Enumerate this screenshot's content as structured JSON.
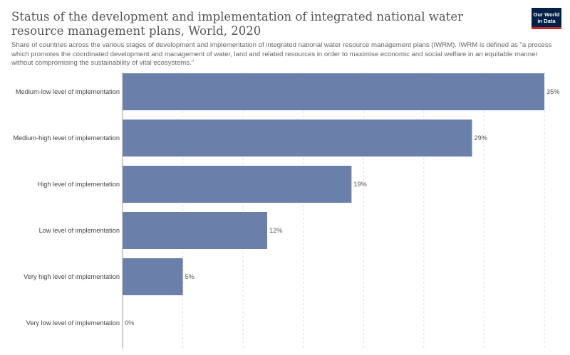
{
  "header": {
    "title": "Status of the development and implementation of integrated national water resource management plans, World, 2020",
    "subtitle": "Share of countries across the various stages of development and implementation of integrated national water resource management plans (IWRM). IWRM is defined as \"a process which promotes the coordinated development and management of water, land and related resources in order to maximise economic and social welfare in an equitable manner without compromising the sustainability of vital ecosystems.\"",
    "logo_line1": "Our World",
    "logo_line2": "in Data"
  },
  "colors": {
    "bar": "#6a7fa9",
    "grid": "#dddddd",
    "axis": "#999999",
    "logo_bg": "#002147",
    "logo_accent": "#ce261e"
  },
  "chart_data": {
    "type": "bar",
    "orientation": "horizontal",
    "categories": [
      "Medium-low level of implementation",
      "Medium-high level of implementation",
      "High level of implementation",
      "Low level of implementation",
      "Very high level of implementation",
      "Very low level of implementation"
    ],
    "values": [
      35,
      29,
      19,
      12,
      5,
      0
    ],
    "value_labels": [
      "35%",
      "29%",
      "19%",
      "12%",
      "5%",
      "0%"
    ],
    "unit": "%",
    "xlim": [
      0,
      35
    ],
    "grid": true
  }
}
